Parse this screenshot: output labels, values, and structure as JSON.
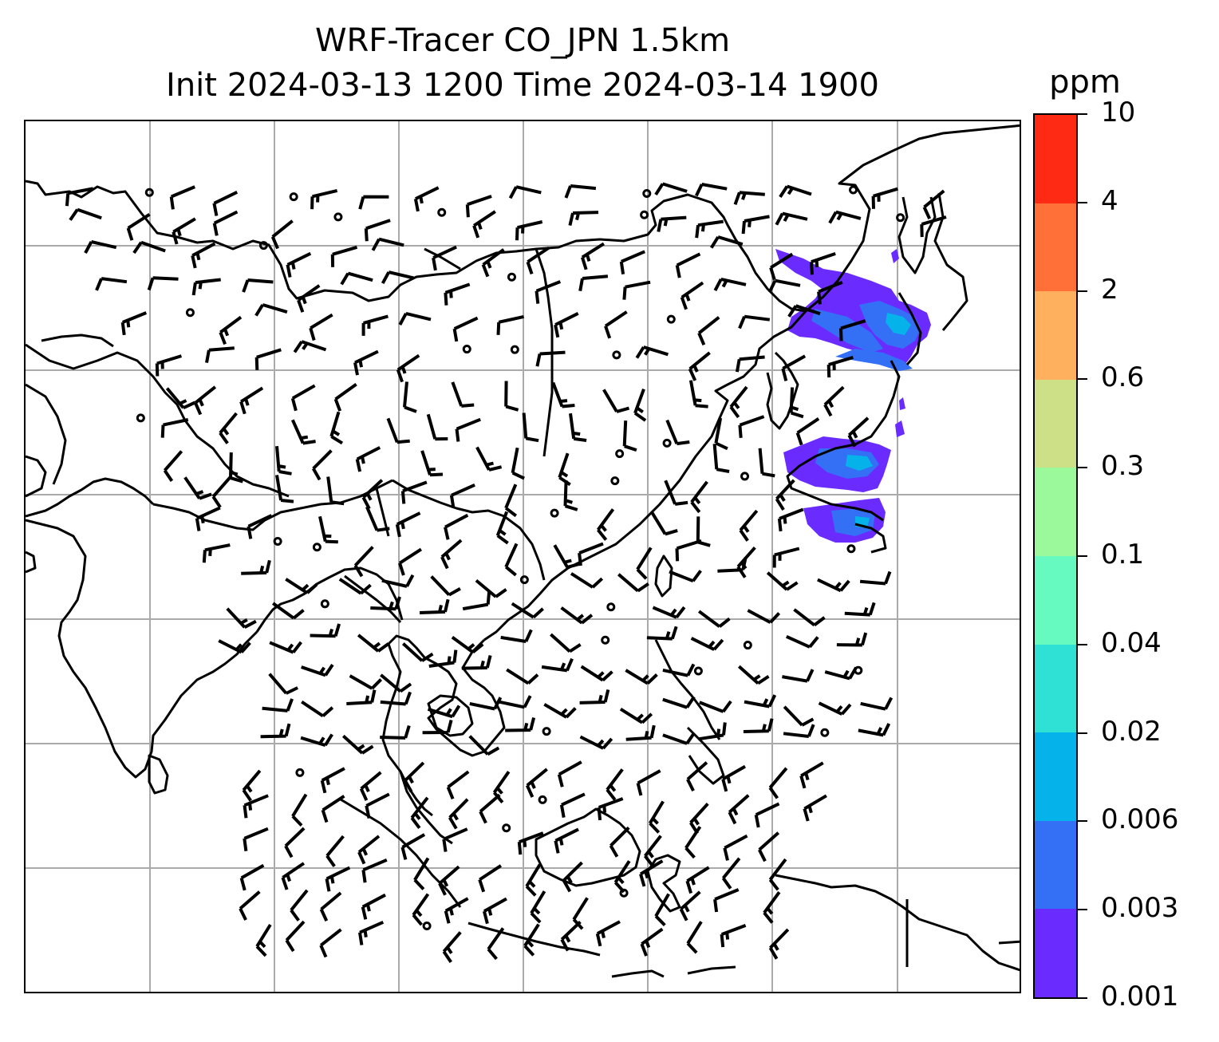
{
  "title": {
    "line1": "WRF-Tracer CO_JPN 1.5km",
    "line2": "Init 2024-03-13 1200 Time 2024-03-14 1900"
  },
  "colorbar": {
    "units": "ppm",
    "levels": [
      "0.001",
      "0.003",
      "0.006",
      "0.02",
      "0.04",
      "0.1",
      "0.3",
      "0.6",
      "2",
      "4",
      "10"
    ],
    "colors": [
      "#6a2bff",
      "#3470f5",
      "#05b3ea",
      "#2fe0d5",
      "#66f9c0",
      "#9bf99b",
      "#cde088",
      "#ffb05e",
      "#ff7039",
      "#ff2a14"
    ]
  },
  "map": {
    "gridlines": true,
    "gridline_color": "#aaaaaa",
    "coastline_color": "#000000",
    "barb_color": "#000000",
    "plume_colors": {
      "outer": "#6a2bff",
      "mid": "#3470f5",
      "core": "#05b3ea",
      "peak": "#2fe0d5"
    }
  }
}
